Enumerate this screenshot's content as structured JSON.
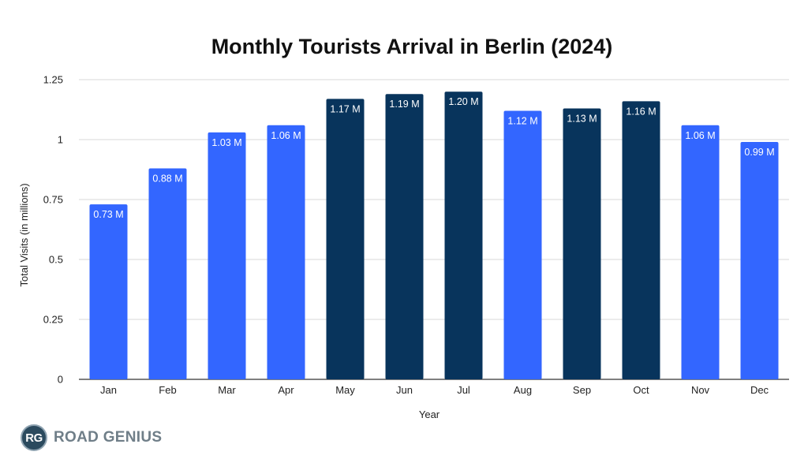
{
  "brand": {
    "badge": "RG",
    "name": "ROAD GENIUS"
  },
  "colors": {
    "light_bar": "#3366ff",
    "dark_bar": "#08345c",
    "grid": "#d9d9d9"
  },
  "chart_data": {
    "type": "bar",
    "title": "Monthly Tourists Arrival in Berlin (2024)",
    "xlabel": "Year",
    "ylabel": "Total Visits (in millions)",
    "ylim": [
      0,
      1.25
    ],
    "yticks": [
      "0",
      "0.25",
      "0.5",
      "0.75",
      "1",
      "1.25"
    ],
    "grid": true,
    "categories": [
      "Jan",
      "Feb",
      "Mar",
      "Apr",
      "May",
      "Jun",
      "Jul",
      "Aug",
      "Sep",
      "Oct",
      "Nov",
      "Dec"
    ],
    "values": [
      0.73,
      0.88,
      1.03,
      1.06,
      1.17,
      1.19,
      1.2,
      1.12,
      1.13,
      1.16,
      1.06,
      0.99
    ],
    "data_labels": [
      "0.73 M",
      "0.88 M",
      "1.03 M",
      "1.06 M",
      "1.17 M",
      "1.19 M",
      "1.20 M",
      "1.12 M",
      "1.13 M",
      "1.16 M",
      "1.06 M",
      "0.99 M"
    ],
    "bar_colors": [
      "light",
      "light",
      "light",
      "light",
      "dark",
      "dark",
      "dark",
      "light",
      "dark",
      "dark",
      "light",
      "light"
    ]
  }
}
